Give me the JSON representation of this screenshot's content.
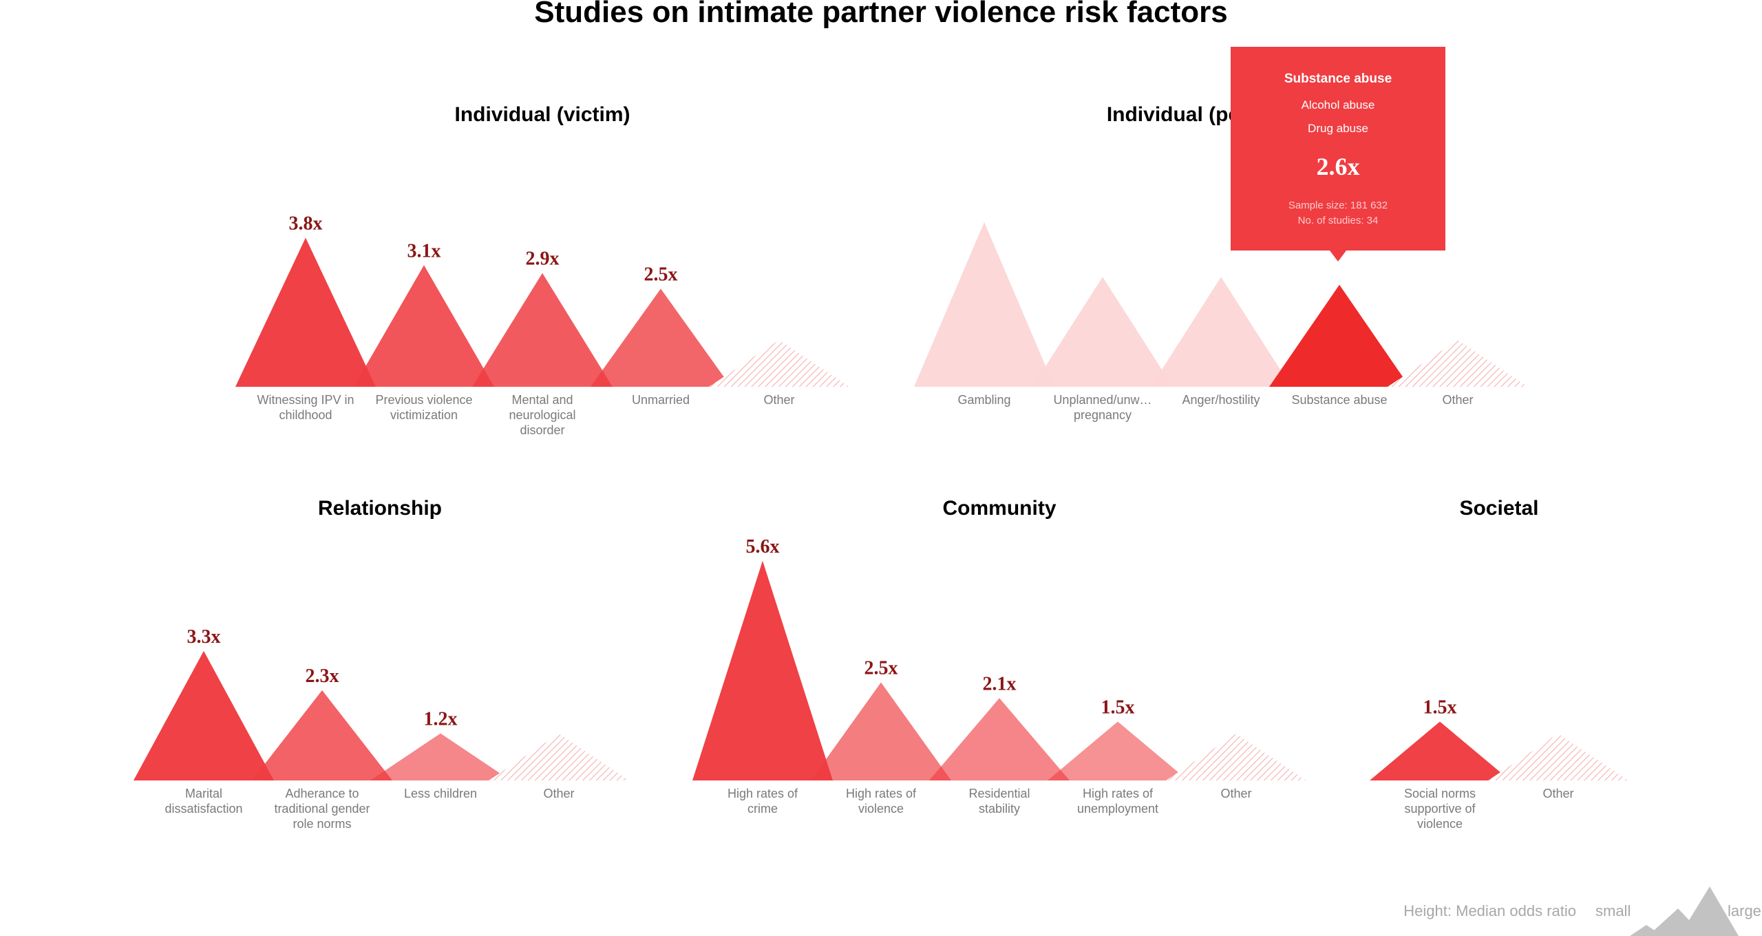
{
  "title": "Studies on intimate partner violence risk factors",
  "colors": {
    "accent": "#ef3d42",
    "highlight": "#ee2a2a",
    "faded": "#fdd6d6",
    "value_text": "#8b1515",
    "category_text": "#7a7a7a",
    "legend_gray": "#c2c2c2"
  },
  "chart_data": [
    {
      "type": "triangle",
      "title": "Individual (victim)",
      "ylabel": "Median odds ratio",
      "categories": [
        "Witnessing IPV in childhood",
        "Previous violence victimization",
        "Mental and neurological disorder",
        "Unmarried",
        "Other"
      ],
      "values": [
        3.8,
        3.1,
        2.9,
        2.5,
        null
      ],
      "value_labels": [
        "3.8x",
        "3.1x",
        "2.9x",
        "2.5x",
        ""
      ]
    },
    {
      "type": "triangle",
      "title": "Individual (perpetrator)",
      "ylabel": "Median odds ratio",
      "categories": [
        "Gambling",
        "Unplanned/unw…\npregnancy",
        "Anger/hostility",
        "Substance abuse",
        "Other"
      ],
      "values": [
        4.2,
        2.8,
        2.8,
        2.6,
        null
      ],
      "value_labels": [
        "",
        "",
        "",
        "",
        ""
      ],
      "highlighted": "Substance abuse"
    },
    {
      "type": "triangle",
      "title": "Relationship",
      "ylabel": "Median odds ratio",
      "categories": [
        "Marital dissatisfaction",
        "Adherance to traditional gender role norms",
        "Less children",
        "Other"
      ],
      "values": [
        3.3,
        2.3,
        1.2,
        null
      ],
      "value_labels": [
        "3.3x",
        "2.3x",
        "1.2x",
        ""
      ]
    },
    {
      "type": "triangle",
      "title": "Community",
      "ylabel": "Median odds ratio",
      "categories": [
        "High rates of crime",
        "High rates of violence",
        "Residential stability",
        "High rates of unemployment",
        "Other"
      ],
      "values": [
        5.6,
        2.5,
        2.1,
        1.5,
        null
      ],
      "value_labels": [
        "5.6x",
        "2.5x",
        "2.1x",
        "1.5x",
        ""
      ]
    },
    {
      "type": "triangle",
      "title": "Societal",
      "ylabel": "Median odds ratio",
      "categories": [
        "Social norms supportive of violence",
        "Other"
      ],
      "values": [
        1.5,
        null
      ],
      "value_labels": [
        "1.5x",
        ""
      ]
    }
  ],
  "tooltip": {
    "title": "Substance abuse",
    "items": [
      "Alcohol abuse",
      "Drug abuse"
    ],
    "value": "2.6x",
    "sample_size": "Sample size: 181 632",
    "studies": "No. of studies: 34"
  },
  "legend": {
    "label": "Height: Median odds ratio",
    "small": "small",
    "large": "large"
  }
}
